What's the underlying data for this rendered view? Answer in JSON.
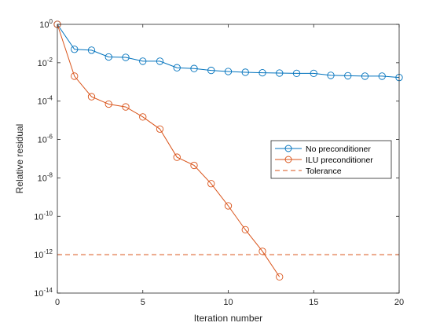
{
  "chart_data": {
    "type": "line",
    "xlabel": "Iteration number",
    "ylabel": "Relative residual",
    "xlim": [
      0,
      20
    ],
    "ylim": [
      1e-14,
      1
    ],
    "yscale": "log",
    "grid": false,
    "legend_position": "right",
    "x_ticks": [
      "0",
      "5",
      "10",
      "15",
      "20"
    ],
    "y_ticks": [
      {
        "base": "10",
        "exp": "0"
      },
      {
        "base": "10",
        "exp": "-2"
      },
      {
        "base": "10",
        "exp": "-4"
      },
      {
        "base": "10",
        "exp": "-6"
      },
      {
        "base": "10",
        "exp": "-8"
      },
      {
        "base": "10",
        "exp": "-10"
      },
      {
        "base": "10",
        "exp": "-12"
      },
      {
        "base": "10",
        "exp": "-14"
      }
    ],
    "series": [
      {
        "name": "No preconditioner",
        "color": "#0072BD",
        "marker": "circle",
        "x": [
          0,
          1,
          2,
          3,
          4,
          5,
          6,
          7,
          8,
          9,
          10,
          11,
          12,
          13,
          14,
          15,
          16,
          17,
          18,
          19,
          20
        ],
        "y": [
          1,
          0.05,
          0.045,
          0.02,
          0.019,
          0.012,
          0.012,
          0.0055,
          0.005,
          0.004,
          0.0035,
          0.0032,
          0.003,
          0.0029,
          0.0028,
          0.0028,
          0.0022,
          0.0021,
          0.002,
          0.002,
          0.0017
        ]
      },
      {
        "name": "ILU preconditioner",
        "color": "#D95319",
        "marker": "circle",
        "x": [
          0,
          1,
          2,
          3,
          4,
          5,
          6,
          7,
          8,
          9,
          10,
          11,
          12,
          13
        ],
        "y": [
          1,
          0.002,
          0.00017,
          7e-05,
          5e-05,
          1.5e-05,
          3.5e-06,
          1.2e-07,
          4.5e-08,
          5e-09,
          3.5e-10,
          2e-11,
          1.5e-12,
          7e-14
        ]
      }
    ],
    "reference_lines": [
      {
        "name": "Tolerance",
        "y": 1e-12,
        "color": "#D95319",
        "style": "dashed"
      }
    ]
  }
}
